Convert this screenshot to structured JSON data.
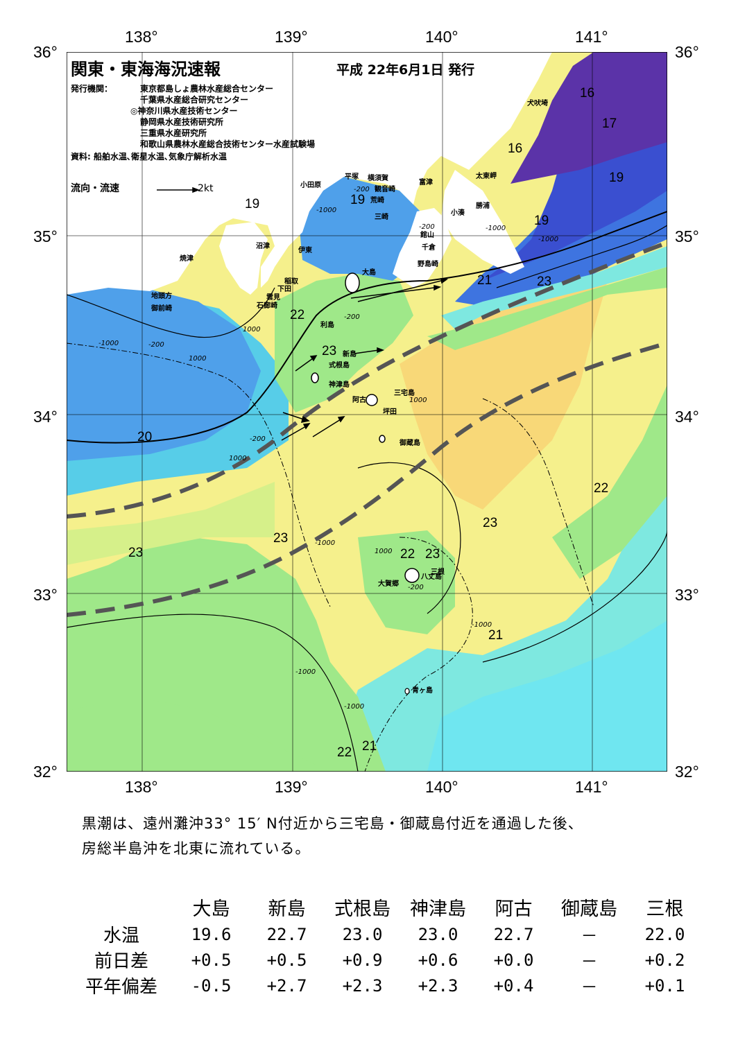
{
  "header": {
    "title": "関東・東海海況速報",
    "date": "平成 22年6月1日 発行",
    "issuer_label": "発行機関：",
    "issuers": [
      "東京都島しょ農林水産総合センター",
      "千葉県水産総合研究センター",
      "◎神奈川県水産技術センター",
      "静岡県水産技術研究所",
      "三重県水産研究所",
      "和歌山県農林水産総合技術センター水産試験場"
    ],
    "sources": "資料: 船舶水温､衛星水温､気象庁解析水温",
    "legend_label": "流向・流速",
    "legend_value": "2kt"
  },
  "axes": {
    "lon_ticks": [
      "138°",
      "139°",
      "140°",
      "141°"
    ],
    "lat_ticks": [
      "36°",
      "35°",
      "34°",
      "33°",
      "32°"
    ]
  },
  "places": [
    "犬吠埼",
    "太東岬",
    "勝浦",
    "小湊",
    "富津",
    "館山",
    "千倉",
    "野島崎",
    "横須賀",
    "観音崎",
    "荒崎",
    "三崎",
    "平塚",
    "小田原",
    "沼津",
    "伊東",
    "稲取",
    "下田",
    "雲見",
    "石廊崎",
    "焼津",
    "地頭方",
    "御前崎",
    "大島",
    "利島",
    "新島",
    "式根島",
    "神津島",
    "三宅島",
    "阿古",
    "坪田",
    "御蔵島",
    "八丈島",
    "三根",
    "大賀郷",
    "青ヶ島"
  ],
  "temp_labels": [
    "16",
    "16",
    "17",
    "19",
    "19",
    "19",
    "19",
    "21",
    "23",
    "22",
    "23",
    "20",
    "23",
    "23",
    "22",
    "23",
    "22",
    "23",
    "21",
    "22",
    "21"
  ],
  "depth_labels": [
    "-200",
    "-200",
    "-200",
    "-200",
    "-1000",
    "-1000",
    "1000",
    "-1000",
    "-1000",
    "-200",
    "1000",
    "1000",
    "-200",
    "-1000",
    "1000",
    "-1000",
    "-1000",
    "-1000",
    "1000"
  ],
  "colors": {
    "t16": "#5b33a8",
    "t17": "#3a4fd0",
    "t18": "#3e74e0",
    "t19": "#4fa0ea",
    "t20": "#57cde8",
    "t21": "#7ee8e0",
    "t215": "#9be8a8",
    "t22": "#9fe889",
    "t225": "#d6f08a",
    "t23": "#f5f08c",
    "t235": "#f8d878",
    "land": "#ffffff",
    "kuroshio": "#555555"
  },
  "summary": [
    "黒潮は、遠州灘沖33° 15′ N付近から三宅島・御蔵島付近を通過した後、",
    "房総半島沖を北東に流れている。"
  ],
  "table": {
    "columns": [
      "大島",
      "新島",
      "式根島",
      "神津島",
      "阿古",
      "御蔵島",
      "三根"
    ],
    "rows": [
      {
        "label": "水温",
        "values": [
          "19.6",
          "22.7",
          "23.0",
          "23.0",
          "22.7",
          "－",
          "22.0"
        ]
      },
      {
        "label": "前日差",
        "values": [
          "+0.5",
          "+0.5",
          "+0.9",
          "+0.6",
          "+0.0",
          "－",
          "+0.2"
        ]
      },
      {
        "label": "平年偏差",
        "values": [
          "-0.5",
          "+2.7",
          "+2.3",
          "+2.3",
          "+0.4",
          "－",
          "+0.1"
        ]
      }
    ]
  }
}
